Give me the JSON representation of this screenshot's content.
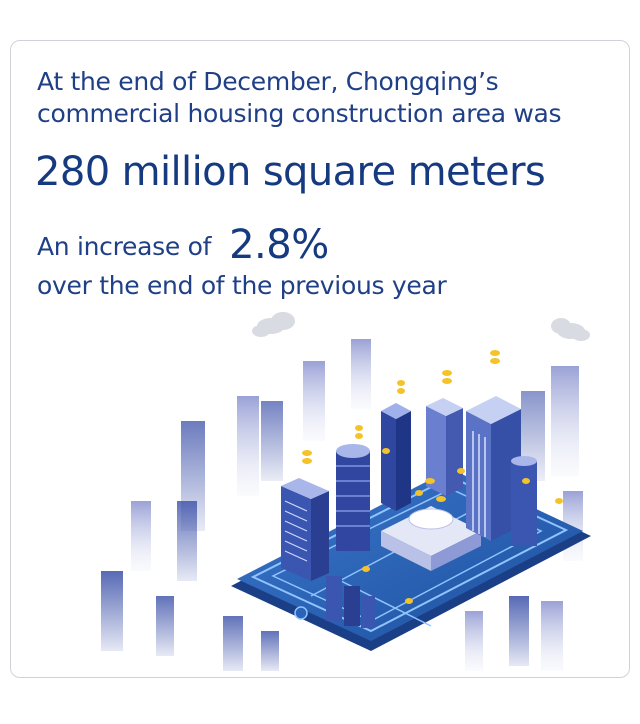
{
  "headline": {
    "line1": "At the end of December, Chongqing’s",
    "line2": "commercial housing construction area was",
    "highlight": "280 million square meters",
    "increase_prefix": "An increase of",
    "increase_value": "2.8%",
    "increase_suffix": "over the end of the previous year"
  },
  "colors": {
    "text": "#1f3f86",
    "highlight": "#163a80",
    "phone": "#2a63b8",
    "building_dark": "#3a4fa8",
    "building_light": "#c9cde9",
    "coin": "#f4c32a",
    "border": "#cfd3d8"
  },
  "illustration": {
    "icon": "smart-city-phone-illustration"
  }
}
